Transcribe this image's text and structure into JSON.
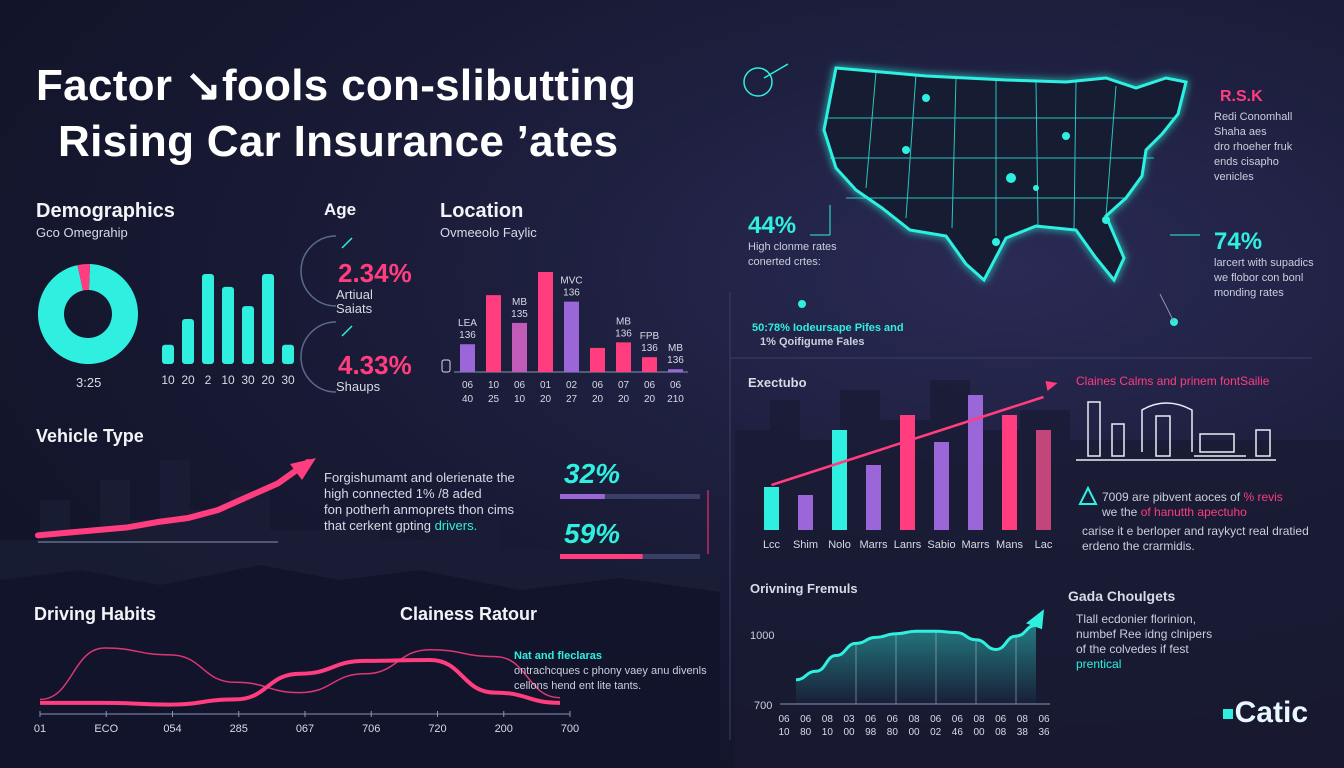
{
  "title_line1": "Factor ↘fools con-slibutting",
  "title_line2": "Rising Car Insurance ’ates",
  "demographics": {
    "heading": "Demographics",
    "subheading": "Gco Omegrahip",
    "donut_label": "3:25"
  },
  "age": {
    "heading": "Age",
    "stat1_value": "2.34%",
    "stat1_line1": "Artiual",
    "stat1_line2": "Saiats",
    "stat2_value": "4.33%",
    "stat2_label": "Shaups"
  },
  "location": {
    "heading": "Location",
    "subheading": "Ovmeeolo Faylic"
  },
  "map_panel": {
    "top_badge": "R.S.K",
    "top_lines": [
      "Redi Conomhall",
      "Shaha aes",
      "dro rhoeher fruk",
      "ends cisapho",
      "venicles"
    ],
    "left_pct": "44%",
    "left_lines": [
      "High clonme rates",
      "conerted crtes:"
    ],
    "right_pct": "74%",
    "right_lines": [
      "larcert with supadics",
      "we flobor con bonl",
      "monding rates"
    ],
    "bottom_line1": "50:78% Iodeursape Pifes and",
    "bottom_line2": "1% Qoifigume Fales"
  },
  "vehicle": {
    "heading": "Vehicle Type",
    "text_line1": "Forgishumamt and olerienate the",
    "text_line2": "high connected 1% /8 aded",
    "text_line3": "fon potherh anmoprets thon cims",
    "text_line4_prefix": "that cerkent gpting ",
    "text_line4_highlight": "drivers.",
    "pct1": "32%",
    "pct2": "59%"
  },
  "executive": {
    "heading": "Exectubo"
  },
  "claims_panel": {
    "heading": "Claines Calms and prinem fontSailie",
    "text_line1_prefix": "7009 are pibvent aoces of ",
    "text_line1_highlight": "% revis",
    "text_line2_prefix": "we the ",
    "text_line2_highlight": "of hanutth apectuho",
    "text_line3": "carise it e berloper and raykyct real dratied",
    "text_line4": "erdeno the crarmidis."
  },
  "driving": {
    "heading": "Driving Habits",
    "claims_heading": "Clainess Ratour",
    "note_head": "Nat and fleclaras",
    "note_line1": "ontrachcques c phony vaey anu divenls",
    "note_line2": "cellons hend ent lite tants."
  },
  "premiums": {
    "heading": "Orivning Fremuls",
    "y_top": "1000",
    "y_bottom": "700"
  },
  "challenges": {
    "heading": "Gada Choulgets",
    "lines": [
      "Tlall ecdonier florinion,",
      "numbef Ree idng clnipers",
      "of the colvedes if fest"
    ],
    "highlight": "prentical"
  },
  "logo": "Catic",
  "colors": {
    "cyan": "#2ff0e0",
    "pink": "#ff3d7f",
    "violet": "#9a66d8",
    "bg": "#161831"
  },
  "chart_data": [
    {
      "type": "pie",
      "name": "demographics-donut",
      "values": [
        96,
        4
      ],
      "colors": [
        "#2ff0e0",
        "#ff3d7f"
      ],
      "caption": "3:25"
    },
    {
      "type": "bar",
      "name": "demographics-bars",
      "categories": [
        "10",
        "20",
        "2",
        "10",
        "30",
        "20",
        "30"
      ],
      "values": [
        3,
        7,
        14,
        12,
        9,
        14,
        3
      ]
    },
    {
      "type": "bar",
      "name": "location-bars",
      "categories": [
        "06",
        "10",
        "06",
        "01",
        "02",
        "06",
        "07",
        "06",
        "06"
      ],
      "sub_labels": [
        "40",
        "25",
        "10",
        "20",
        "27",
        "20",
        "20",
        "20",
        "210"
      ],
      "top_labels": [
        "LEA 136",
        "",
        "MB 135",
        "",
        "MVC 136",
        "",
        "MB 136",
        "FPB 136",
        "MB 136"
      ],
      "values": [
        30,
        83,
        53,
        108,
        76,
        26,
        32,
        16,
        3
      ],
      "colors": [
        "#9a66d8",
        "#ff3d7f",
        "#c05cb8",
        "#ff3d7f",
        "#9a66d8",
        "#ff3d7f",
        "#ff3d7f",
        "#ff3d7f",
        "#9a66d8"
      ]
    },
    {
      "type": "line",
      "name": "vehicle-trend",
      "x": [
        0,
        1,
        2,
        3,
        4,
        5,
        6,
        7,
        8,
        9
      ],
      "values": [
        5,
        7,
        9,
        11,
        15,
        18,
        24,
        34,
        44,
        60
      ]
    },
    {
      "type": "bar",
      "name": "vehicle-progress",
      "categories": [
        "32%",
        "59%"
      ],
      "values": [
        32,
        59
      ]
    },
    {
      "type": "bar",
      "name": "executive-bars",
      "categories": [
        "Lcc",
        "Shim",
        "Nolo",
        "Marrs",
        "Lanrs",
        "Sabio",
        "Marrs",
        "Mans",
        "Lac"
      ],
      "values": [
        43,
        35,
        100,
        65,
        115,
        88,
        135,
        115,
        100
      ],
      "colors": [
        "#2ff0e0",
        "#9a66d8",
        "#2ff0e0",
        "#9a66d8",
        "#ff3d7f",
        "#9a66d8",
        "#9a66d8",
        "#ff3d7f",
        "#c4457a"
      ]
    },
    {
      "type": "line",
      "name": "driving-habits",
      "x_ticks": [
        "01",
        "ECO",
        "054",
        "285",
        "067",
        "706",
        "720",
        "200",
        "700"
      ],
      "series": [
        {
          "values": [
            10,
            70,
            62,
            30,
            18,
            40,
            68,
            60,
            12
          ]
        },
        {
          "values": [
            6,
            6,
            4,
            10,
            40,
            55,
            56,
            18,
            6
          ]
        }
      ]
    },
    {
      "type": "area",
      "name": "driving-premiums",
      "ylim": [
        700,
        1000
      ],
      "x_ticks_top": [
        "06",
        "06",
        "08",
        "03",
        "06",
        "06",
        "08",
        "06",
        "06",
        "08",
        "06",
        "08",
        "06"
      ],
      "x_ticks_bottom": [
        "10",
        "80",
        "10",
        "00",
        "98",
        "80",
        "00",
        "02",
        "46",
        "00",
        "08",
        "38",
        "36"
      ],
      "values": [
        800,
        835,
        900,
        950,
        975,
        990,
        1000,
        1000,
        995,
        965,
        925,
        980,
        1025
      ]
    }
  ]
}
